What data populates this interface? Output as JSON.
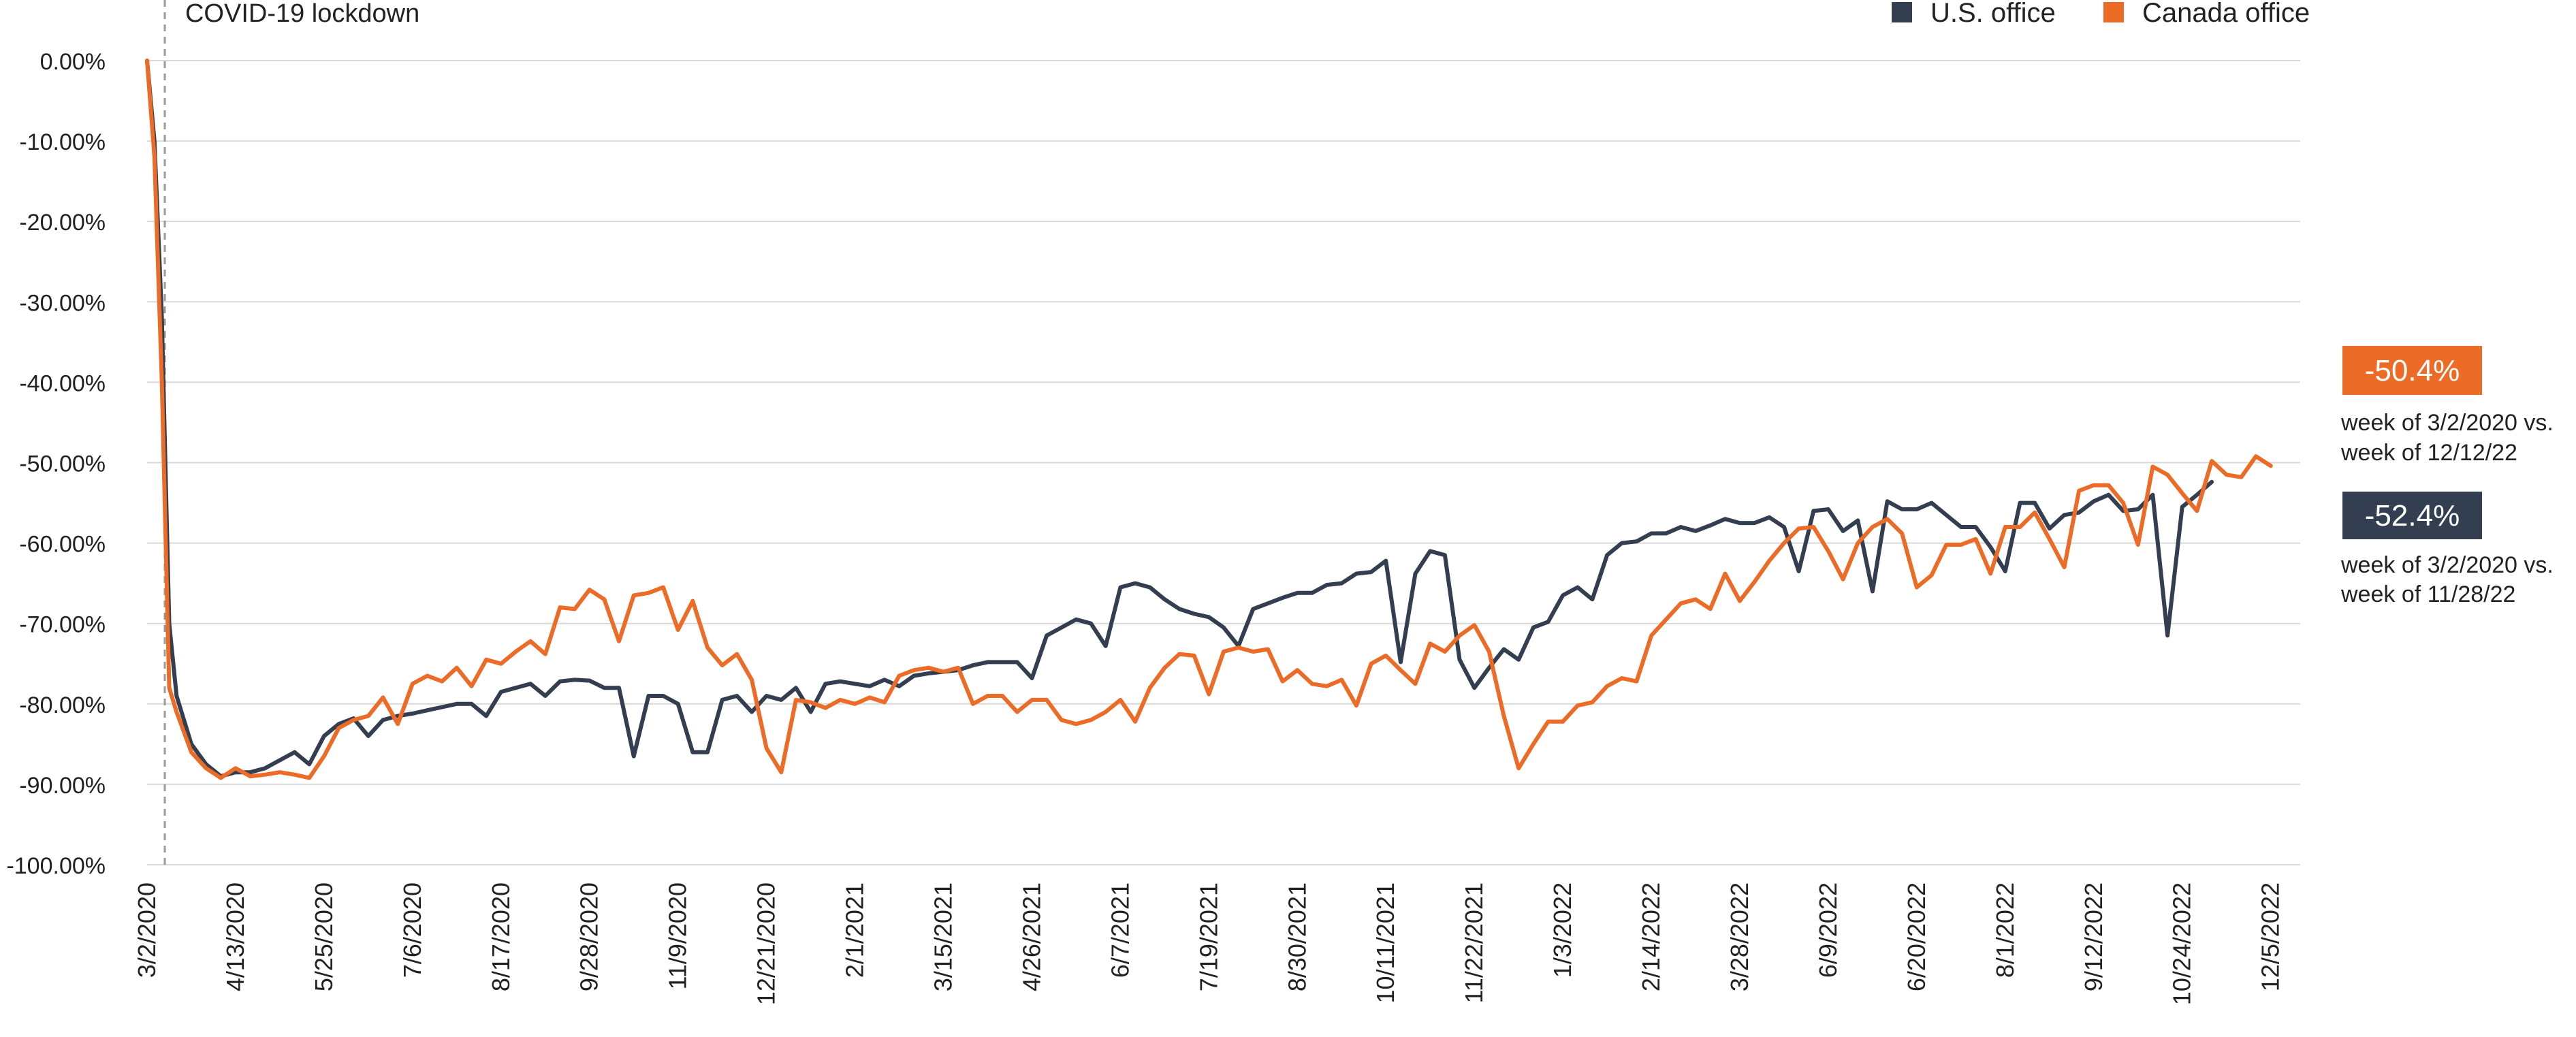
{
  "chart_data": {
    "type": "line",
    "title": "",
    "xlabel": "",
    "ylabel": "",
    "ylim": [
      -100,
      0
    ],
    "y_ticks": [
      0,
      -10,
      -20,
      -30,
      -40,
      -50,
      -60,
      -70,
      -80,
      -90,
      -100
    ],
    "y_tick_labels": [
      "0.00%",
      "-10.00%",
      "-20.00%",
      "-30.00%",
      "-40.00%",
      "-50.00%",
      "-60.00%",
      "-70.00%",
      "-80.00%",
      "-90.00%",
      "-100.00%"
    ],
    "x_ticks": [
      "3/2/2020",
      "4/13/2020",
      "5/25/2020",
      "7/6/2020",
      "8/17/2020",
      "9/28/2020",
      "11/9/2020",
      "12/21/2020",
      "2/1/2021",
      "3/15/2021",
      "4/26/2021",
      "6/7/2021",
      "7/19/2021",
      "8/30/2021",
      "10/11/2021",
      "11/22/2021",
      "1/3/2022",
      "2/14/2022",
      "3/28/2022",
      "6/9/2022",
      "6/20/2022",
      "8/1/2022",
      "9/12/2022",
      "10/24/2022",
      "12/5/2022"
    ],
    "x_tick_positions": [
      0,
      6,
      12,
      18,
      24,
      30,
      36,
      42,
      48,
      54,
      60,
      66,
      72,
      78,
      84,
      90,
      96,
      102,
      108,
      114,
      120,
      126,
      132,
      138,
      144
    ],
    "x_range": [
      0,
      146
    ],
    "grid": true,
    "legend_position": "top-right",
    "annotation": {
      "label": "COVID-19 lockdown",
      "x": 1.2
    },
    "series": [
      {
        "name": "U.S. office",
        "color": "#333f50",
        "points": [
          [
            0,
            0
          ],
          [
            0.5,
            -10
          ],
          [
            1,
            -32
          ],
          [
            1.5,
            -70
          ],
          [
            2,
            -79
          ],
          [
            3,
            -85
          ],
          [
            4,
            -87.5
          ],
          [
            5,
            -89
          ],
          [
            6,
            -88.5
          ],
          [
            7,
            -88.5
          ],
          [
            8,
            -88
          ],
          [
            9,
            -87
          ],
          [
            10,
            -86
          ],
          [
            11,
            -87.5
          ],
          [
            12,
            -84
          ],
          [
            13,
            -82.5
          ],
          [
            14,
            -81.8
          ],
          [
            15,
            -84
          ],
          [
            16,
            -82
          ],
          [
            17,
            -81.5
          ],
          [
            18,
            -81.2
          ],
          [
            19,
            -80.8
          ],
          [
            20,
            -80.4
          ],
          [
            21,
            -80
          ],
          [
            22,
            -80
          ],
          [
            23,
            -81.5
          ],
          [
            24,
            -78.5
          ],
          [
            25,
            -78
          ],
          [
            26,
            -77.5
          ],
          [
            27,
            -79
          ],
          [
            28,
            -77.2
          ],
          [
            29,
            -77
          ],
          [
            30,
            -77.1
          ],
          [
            31,
            -78
          ],
          [
            32,
            -78
          ],
          [
            33,
            -86.5
          ],
          [
            34,
            -79
          ],
          [
            35,
            -79
          ],
          [
            36,
            -80
          ],
          [
            37,
            -86
          ],
          [
            38,
            -86
          ],
          [
            39,
            -79.5
          ],
          [
            40,
            -79
          ],
          [
            41,
            -81
          ],
          [
            42,
            -79
          ],
          [
            43,
            -79.5
          ],
          [
            44,
            -78
          ],
          [
            45,
            -81
          ],
          [
            46,
            -77.5
          ],
          [
            47,
            -77.2
          ],
          [
            48,
            -77.5
          ],
          [
            49,
            -77.8
          ],
          [
            50,
            -77
          ],
          [
            51,
            -77.8
          ],
          [
            52,
            -76.5
          ],
          [
            53,
            -76.2
          ],
          [
            54,
            -76
          ],
          [
            55,
            -75.8
          ],
          [
            56,
            -75.2
          ],
          [
            57,
            -74.8
          ],
          [
            58,
            -74.8
          ],
          [
            59,
            -74.8
          ],
          [
            60,
            -76.8
          ],
          [
            61,
            -71.5
          ],
          [
            62,
            -70.5
          ],
          [
            63,
            -69.5
          ],
          [
            64,
            -70
          ],
          [
            65,
            -72.8
          ],
          [
            66,
            -65.5
          ],
          [
            67,
            -65
          ],
          [
            68,
            -65.5
          ],
          [
            69,
            -67
          ],
          [
            70,
            -68.2
          ],
          [
            71,
            -68.8
          ],
          [
            72,
            -69.2
          ],
          [
            73,
            -70.5
          ],
          [
            74,
            -72.8
          ],
          [
            75,
            -68.2
          ],
          [
            76,
            -67.5
          ],
          [
            77,
            -66.8
          ],
          [
            78,
            -66.2
          ],
          [
            79,
            -66.2
          ],
          [
            80,
            -65.2
          ],
          [
            81,
            -65
          ],
          [
            82,
            -63.8
          ],
          [
            83,
            -63.6
          ],
          [
            84,
            -62.2
          ],
          [
            85,
            -74.8
          ],
          [
            86,
            -63.8
          ],
          [
            87,
            -61
          ],
          [
            88,
            -61.5
          ],
          [
            89,
            -74.5
          ],
          [
            90,
            -78
          ],
          [
            91,
            -75.5
          ],
          [
            92,
            -73.2
          ],
          [
            93,
            -74.5
          ],
          [
            94,
            -70.5
          ],
          [
            95,
            -69.8
          ],
          [
            96,
            -66.5
          ],
          [
            97,
            -65.5
          ],
          [
            98,
            -67
          ],
          [
            99,
            -61.5
          ],
          [
            100,
            -60
          ],
          [
            101,
            -59.8
          ],
          [
            102,
            -58.8
          ],
          [
            103,
            -58.8
          ],
          [
            104,
            -58
          ],
          [
            105,
            -58.5
          ],
          [
            106,
            -57.8
          ],
          [
            107,
            -57
          ],
          [
            108,
            -57.5
          ],
          [
            109,
            -57.5
          ],
          [
            110,
            -56.8
          ],
          [
            111,
            -58
          ],
          [
            112,
            -63.5
          ],
          [
            113,
            -56
          ],
          [
            114,
            -55.8
          ],
          [
            115,
            -58.5
          ],
          [
            116,
            -57.2
          ],
          [
            117,
            -66
          ],
          [
            118,
            -54.8
          ],
          [
            119,
            -55.8
          ],
          [
            120,
            -55.8
          ],
          [
            121,
            -55
          ],
          [
            122,
            -56.5
          ],
          [
            123,
            -58
          ],
          [
            124,
            -58
          ],
          [
            125,
            -60.5
          ],
          [
            126,
            -63.5
          ],
          [
            127,
            -55
          ],
          [
            128,
            -55
          ],
          [
            129,
            -58.2
          ],
          [
            130,
            -56.5
          ],
          [
            131,
            -56.2
          ],
          [
            132,
            -54.8
          ],
          [
            133,
            -54
          ],
          [
            134,
            -56
          ],
          [
            135,
            -55.8
          ],
          [
            136,
            -54
          ],
          [
            137,
            -71.5
          ],
          [
            138,
            -55.5
          ],
          [
            139,
            -54
          ],
          [
            140,
            -52.4
          ]
        ]
      },
      {
        "name": "Canada office",
        "color": "#ec6b27",
        "points": [
          [
            0,
            0
          ],
          [
            0.5,
            -12
          ],
          [
            1,
            -40
          ],
          [
            1.5,
            -78
          ],
          [
            2,
            -81
          ],
          [
            3,
            -86
          ],
          [
            4,
            -88
          ],
          [
            5,
            -89.2
          ],
          [
            6,
            -88
          ],
          [
            7,
            -89
          ],
          [
            8,
            -88.8
          ],
          [
            9,
            -88.5
          ],
          [
            10,
            -88.8
          ],
          [
            11,
            -89.2
          ],
          [
            12,
            -86.5
          ],
          [
            13,
            -83
          ],
          [
            14,
            -82
          ],
          [
            15,
            -81.5
          ],
          [
            16,
            -79.2
          ],
          [
            17,
            -82.5
          ],
          [
            18,
            -77.5
          ],
          [
            19,
            -76.5
          ],
          [
            20,
            -77.2
          ],
          [
            21,
            -75.5
          ],
          [
            22,
            -77.8
          ],
          [
            23,
            -74.5
          ],
          [
            24,
            -75
          ],
          [
            25,
            -73.5
          ],
          [
            26,
            -72.2
          ],
          [
            27,
            -73.8
          ],
          [
            28,
            -68
          ],
          [
            29,
            -68.2
          ],
          [
            30,
            -65.8
          ],
          [
            31,
            -67
          ],
          [
            32,
            -72.2
          ],
          [
            33,
            -66.5
          ],
          [
            34,
            -66.2
          ],
          [
            35,
            -65.5
          ],
          [
            36,
            -70.8
          ],
          [
            37,
            -67.2
          ],
          [
            38,
            -73
          ],
          [
            39,
            -75.2
          ],
          [
            40,
            -73.8
          ],
          [
            41,
            -77
          ],
          [
            42,
            -85.5
          ],
          [
            43,
            -88.5
          ],
          [
            44,
            -79.5
          ],
          [
            45,
            -79.8
          ],
          [
            46,
            -80.5
          ],
          [
            47,
            -79.5
          ],
          [
            48,
            -80
          ],
          [
            49,
            -79.2
          ],
          [
            50,
            -79.8
          ],
          [
            51,
            -76.5
          ],
          [
            52,
            -75.8
          ],
          [
            53,
            -75.5
          ],
          [
            54,
            -76
          ],
          [
            55,
            -75.5
          ],
          [
            56,
            -80
          ],
          [
            57,
            -79
          ],
          [
            58,
            -79
          ],
          [
            59,
            -81
          ],
          [
            60,
            -79.5
          ],
          [
            61,
            -79.5
          ],
          [
            62,
            -82
          ],
          [
            63,
            -82.5
          ],
          [
            64,
            -82
          ],
          [
            65,
            -81
          ],
          [
            66,
            -79.5
          ],
          [
            67,
            -82.2
          ],
          [
            68,
            -78
          ],
          [
            69,
            -75.5
          ],
          [
            70,
            -73.8
          ],
          [
            71,
            -74
          ],
          [
            72,
            -78.8
          ],
          [
            73,
            -73.5
          ],
          [
            74,
            -73
          ],
          [
            75,
            -73.5
          ],
          [
            76,
            -73.2
          ],
          [
            77,
            -77.2
          ],
          [
            78,
            -75.8
          ],
          [
            79,
            -77.5
          ],
          [
            80,
            -77.8
          ],
          [
            81,
            -77
          ],
          [
            82,
            -80.2
          ],
          [
            83,
            -75
          ],
          [
            84,
            -74
          ],
          [
            85,
            -75.8
          ],
          [
            86,
            -77.5
          ],
          [
            87,
            -72.5
          ],
          [
            88,
            -73.5
          ],
          [
            89,
            -71.5
          ],
          [
            90,
            -70.2
          ],
          [
            91,
            -73.5
          ],
          [
            92,
            -81.5
          ],
          [
            93,
            -88
          ],
          [
            94,
            -85
          ],
          [
            95,
            -82.2
          ],
          [
            96,
            -82.2
          ],
          [
            97,
            -80.2
          ],
          [
            98,
            -79.8
          ],
          [
            99,
            -77.8
          ],
          [
            100,
            -76.8
          ],
          [
            101,
            -77.2
          ],
          [
            102,
            -71.5
          ],
          [
            103,
            -69.5
          ],
          [
            104,
            -67.5
          ],
          [
            105,
            -67
          ],
          [
            106,
            -68.2
          ],
          [
            107,
            -63.8
          ],
          [
            108,
            -67.2
          ],
          [
            109,
            -64.8
          ],
          [
            110,
            -62.2
          ],
          [
            111,
            -60
          ],
          [
            112,
            -58.2
          ],
          [
            113,
            -58
          ],
          [
            114,
            -61
          ],
          [
            115,
            -64.5
          ],
          [
            116,
            -60
          ],
          [
            117,
            -58
          ],
          [
            118,
            -57
          ],
          [
            119,
            -58.8
          ],
          [
            120,
            -65.5
          ],
          [
            121,
            -64
          ],
          [
            122,
            -60.2
          ],
          [
            123,
            -60.2
          ],
          [
            124,
            -59.5
          ],
          [
            125,
            -63.8
          ],
          [
            126,
            -58
          ],
          [
            127,
            -58
          ],
          [
            128,
            -56.2
          ],
          [
            129,
            -59.5
          ],
          [
            130,
            -63
          ],
          [
            131,
            -53.5
          ],
          [
            132,
            -52.8
          ],
          [
            133,
            -52.8
          ],
          [
            134,
            -55
          ],
          [
            135,
            -60.2
          ],
          [
            136,
            -50.5
          ],
          [
            137,
            -51.5
          ],
          [
            138,
            -53.8
          ],
          [
            139,
            -56
          ],
          [
            140,
            -49.8
          ],
          [
            141,
            -51.5
          ],
          [
            142,
            -51.8
          ],
          [
            143,
            -49.2
          ],
          [
            144,
            -50.4
          ]
        ]
      }
    ],
    "callouts": [
      {
        "series": "Canada office",
        "value_label": "-50.4%",
        "note_line1": "week of 3/2/2020 vs.",
        "note_line2": "week of 12/12/22",
        "color": "#ec6b27"
      },
      {
        "series": "U.S. office",
        "value_label": "-52.4%",
        "note_line1": "week of 3/2/2020 vs.",
        "note_line2": "week of 11/28/22",
        "color": "#333f50"
      }
    ]
  }
}
